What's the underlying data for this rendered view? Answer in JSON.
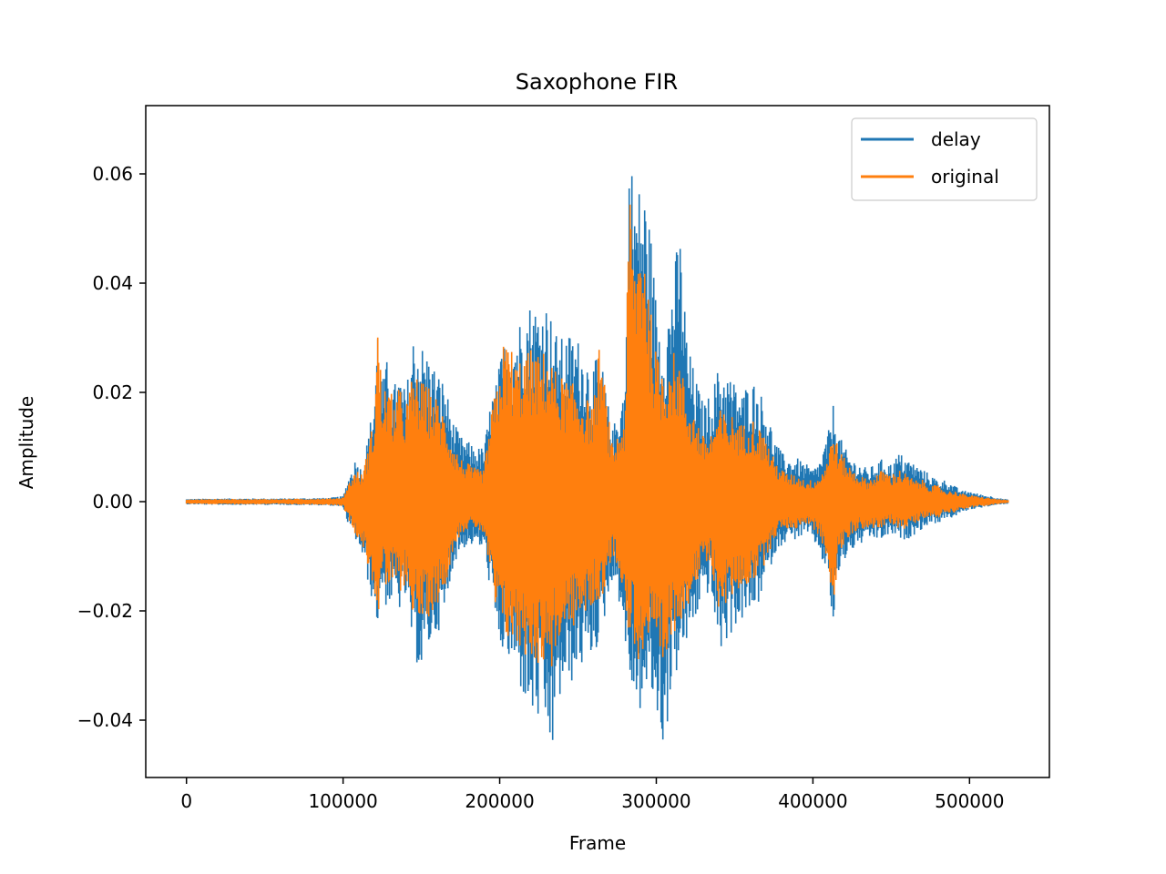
{
  "chart_data": {
    "type": "line",
    "title": "Saxophone FIR",
    "xlabel": "Frame",
    "ylabel": "Amplitude",
    "xlim": [
      -26000,
      551000
    ],
    "ylim": [
      -0.0505,
      0.0725
    ],
    "xticks": [
      {
        "value": 0,
        "label": "0"
      },
      {
        "value": 100000,
        "label": "100000"
      },
      {
        "value": 200000,
        "label": "200000"
      },
      {
        "value": 300000,
        "label": "300000"
      },
      {
        "value": 400000,
        "label": "400000"
      },
      {
        "value": 500000,
        "label": "500000"
      }
    ],
    "yticks": [
      {
        "value": -0.04,
        "label": "−0.04"
      },
      {
        "value": -0.02,
        "label": "−0.02"
      },
      {
        "value": 0.0,
        "label": "0.00"
      },
      {
        "value": 0.02,
        "label": "0.02"
      },
      {
        "value": 0.04,
        "label": "0.04"
      },
      {
        "value": 0.06,
        "label": "0.06"
      }
    ],
    "legend_position": "upper-right",
    "grid": false,
    "x_range_frames": [
      0,
      525000
    ],
    "series": [
      {
        "name": "delay",
        "color": "#1f77b4",
        "envelope": {
          "x": [
            0,
            20000,
            60000,
            90000,
            100000,
            103000,
            108000,
            112000,
            116000,
            120000,
            122000,
            125000,
            128000,
            132000,
            136000,
            140000,
            145000,
            150000,
            155000,
            160000,
            165000,
            170000,
            175000,
            180000,
            185000,
            190000,
            195000,
            198000,
            202000,
            206000,
            210000,
            215000,
            220000,
            225000,
            230000,
            233000,
            236000,
            240000,
            245000,
            250000,
            255000,
            260000,
            264000,
            268000,
            272000,
            276000,
            280000,
            283000,
            285000,
            288000,
            292000,
            296000,
            300000,
            305000,
            310000,
            315000,
            320000,
            325000,
            330000,
            335000,
            340000,
            345000,
            350000,
            355000,
            360000,
            365000,
            370000,
            375000,
            380000,
            385000,
            390000,
            395000,
            400000,
            405000,
            410000,
            413000,
            416000,
            420000,
            425000,
            430000,
            435000,
            440000,
            445000,
            450000,
            455000,
            460000,
            465000,
            470000,
            475000,
            480000,
            485000,
            490000,
            495000,
            500000,
            505000,
            510000,
            515000,
            520000,
            525000
          ],
          "upper": [
            0.0005,
            0.0006,
            0.0006,
            0.0007,
            0.001,
            0.004,
            0.008,
            0.006,
            0.012,
            0.02,
            0.034,
            0.022,
            0.026,
            0.021,
            0.024,
            0.02,
            0.031,
            0.029,
            0.027,
            0.024,
            0.022,
            0.015,
            0.012,
            0.011,
            0.01,
            0.01,
            0.02,
            0.022,
            0.029,
            0.031,
            0.032,
            0.035,
            0.037,
            0.036,
            0.037,
            0.034,
            0.031,
            0.03,
            0.031,
            0.03,
            0.027,
            0.025,
            0.028,
            0.02,
            0.013,
            0.018,
            0.022,
            0.067,
            0.06,
            0.058,
            0.059,
            0.051,
            0.037,
            0.03,
            0.041,
            0.05,
            0.029,
            0.023,
            0.018,
            0.02,
            0.025,
            0.024,
            0.022,
            0.02,
            0.023,
            0.021,
            0.018,
            0.012,
            0.009,
            0.008,
            0.008,
            0.007,
            0.006,
            0.008,
            0.013,
            0.018,
            0.013,
            0.01,
            0.008,
            0.007,
            0.006,
            0.007,
            0.008,
            0.007,
            0.009,
            0.008,
            0.007,
            0.006,
            0.005,
            0.004,
            0.004,
            0.003,
            0.002,
            0.002,
            0.0015,
            0.0012,
            0.001,
            0.0006,
            0.0004
          ],
          "lower": [
            -0.0005,
            -0.0006,
            -0.0006,
            -0.0007,
            -0.001,
            -0.004,
            -0.007,
            -0.01,
            -0.015,
            -0.02,
            -0.023,
            -0.016,
            -0.02,
            -0.018,
            -0.02,
            -0.018,
            -0.028,
            -0.032,
            -0.027,
            -0.024,
            -0.022,
            -0.012,
            -0.009,
            -0.008,
            -0.008,
            -0.009,
            -0.018,
            -0.026,
            -0.028,
            -0.03,
            -0.032,
            -0.036,
            -0.04,
            -0.041,
            -0.043,
            -0.048,
            -0.04,
            -0.035,
            -0.034,
            -0.031,
            -0.03,
            -0.028,
            -0.026,
            -0.02,
            -0.014,
            -0.018,
            -0.025,
            -0.038,
            -0.034,
            -0.04,
            -0.037,
            -0.035,
            -0.04,
            -0.046,
            -0.034,
            -0.03,
            -0.026,
            -0.022,
            -0.017,
            -0.017,
            -0.028,
            -0.026,
            -0.023,
            -0.022,
            -0.021,
            -0.019,
            -0.015,
            -0.01,
            -0.008,
            -0.007,
            -0.007,
            -0.006,
            -0.007,
            -0.01,
            -0.015,
            -0.024,
            -0.014,
            -0.011,
            -0.009,
            -0.008,
            -0.007,
            -0.007,
            -0.007,
            -0.006,
            -0.007,
            -0.007,
            -0.006,
            -0.005,
            -0.004,
            -0.004,
            -0.003,
            -0.003,
            -0.002,
            -0.0015,
            -0.0012,
            -0.001,
            -0.0008,
            -0.0005,
            -0.0004
          ]
        }
      },
      {
        "name": "original",
        "color": "#ff7f0e",
        "envelope": {
          "x": [
            0,
            20000,
            60000,
            90000,
            100000,
            103000,
            108000,
            112000,
            116000,
            120000,
            122000,
            125000,
            128000,
            132000,
            136000,
            140000,
            145000,
            150000,
            155000,
            160000,
            165000,
            170000,
            175000,
            180000,
            185000,
            190000,
            195000,
            198000,
            202000,
            206000,
            210000,
            215000,
            220000,
            225000,
            230000,
            233000,
            236000,
            240000,
            245000,
            250000,
            255000,
            260000,
            264000,
            268000,
            272000,
            276000,
            280000,
            283000,
            285000,
            288000,
            292000,
            296000,
            300000,
            305000,
            310000,
            315000,
            320000,
            325000,
            330000,
            335000,
            340000,
            345000,
            350000,
            355000,
            360000,
            365000,
            370000,
            375000,
            380000,
            385000,
            390000,
            395000,
            400000,
            405000,
            410000,
            413000,
            416000,
            420000,
            425000,
            430000,
            435000,
            440000,
            445000,
            450000,
            455000,
            460000,
            465000,
            470000,
            475000,
            480000,
            485000,
            490000,
            495000,
            500000,
            505000,
            510000,
            515000,
            520000,
            525000
          ],
          "upper": [
            0.0004,
            0.0005,
            0.0005,
            0.0006,
            0.0008,
            0.003,
            0.006,
            0.005,
            0.01,
            0.016,
            0.034,
            0.02,
            0.022,
            0.019,
            0.021,
            0.018,
            0.024,
            0.022,
            0.021,
            0.019,
            0.016,
            0.011,
            0.008,
            0.007,
            0.006,
            0.006,
            0.017,
            0.021,
            0.029,
            0.03,
            0.026,
            0.027,
            0.028,
            0.027,
            0.028,
            0.026,
            0.024,
            0.023,
            0.022,
            0.021,
            0.019,
            0.018,
            0.03,
            0.019,
            0.01,
            0.013,
            0.016,
            0.06,
            0.047,
            0.048,
            0.053,
            0.036,
            0.027,
            0.025,
            0.028,
            0.026,
            0.019,
            0.016,
            0.012,
            0.013,
            0.017,
            0.016,
            0.016,
            0.014,
            0.016,
            0.014,
            0.012,
            0.008,
            0.006,
            0.005,
            0.005,
            0.004,
            0.004,
            0.005,
            0.009,
            0.014,
            0.01,
            0.008,
            0.006,
            0.005,
            0.004,
            0.005,
            0.006,
            0.005,
            0.006,
            0.005,
            0.004,
            0.004,
            0.003,
            0.003,
            0.002,
            0.002,
            0.0015,
            0.0012,
            0.001,
            0.0008,
            0.0006,
            0.0004,
            0.0003
          ],
          "lower": [
            -0.0004,
            -0.0005,
            -0.0005,
            -0.0006,
            -0.0008,
            -0.003,
            -0.006,
            -0.008,
            -0.012,
            -0.016,
            -0.023,
            -0.014,
            -0.017,
            -0.015,
            -0.017,
            -0.015,
            -0.021,
            -0.023,
            -0.021,
            -0.019,
            -0.016,
            -0.009,
            -0.006,
            -0.005,
            -0.005,
            -0.006,
            -0.016,
            -0.022,
            -0.024,
            -0.026,
            -0.027,
            -0.028,
            -0.029,
            -0.03,
            -0.03,
            -0.031,
            -0.027,
            -0.025,
            -0.024,
            -0.022,
            -0.021,
            -0.019,
            -0.019,
            -0.015,
            -0.01,
            -0.012,
            -0.018,
            -0.028,
            -0.024,
            -0.03,
            -0.028,
            -0.026,
            -0.031,
            -0.033,
            -0.025,
            -0.022,
            -0.019,
            -0.016,
            -0.012,
            -0.012,
            -0.02,
            -0.019,
            -0.017,
            -0.016,
            -0.015,
            -0.014,
            -0.011,
            -0.007,
            -0.005,
            -0.005,
            -0.005,
            -0.004,
            -0.005,
            -0.007,
            -0.011,
            -0.023,
            -0.01,
            -0.008,
            -0.006,
            -0.005,
            -0.005,
            -0.005,
            -0.005,
            -0.004,
            -0.005,
            -0.005,
            -0.004,
            -0.003,
            -0.003,
            -0.003,
            -0.002,
            -0.002,
            -0.0015,
            -0.0012,
            -0.001,
            -0.0008,
            -0.0006,
            -0.0004,
            -0.0003
          ]
        }
      }
    ]
  }
}
